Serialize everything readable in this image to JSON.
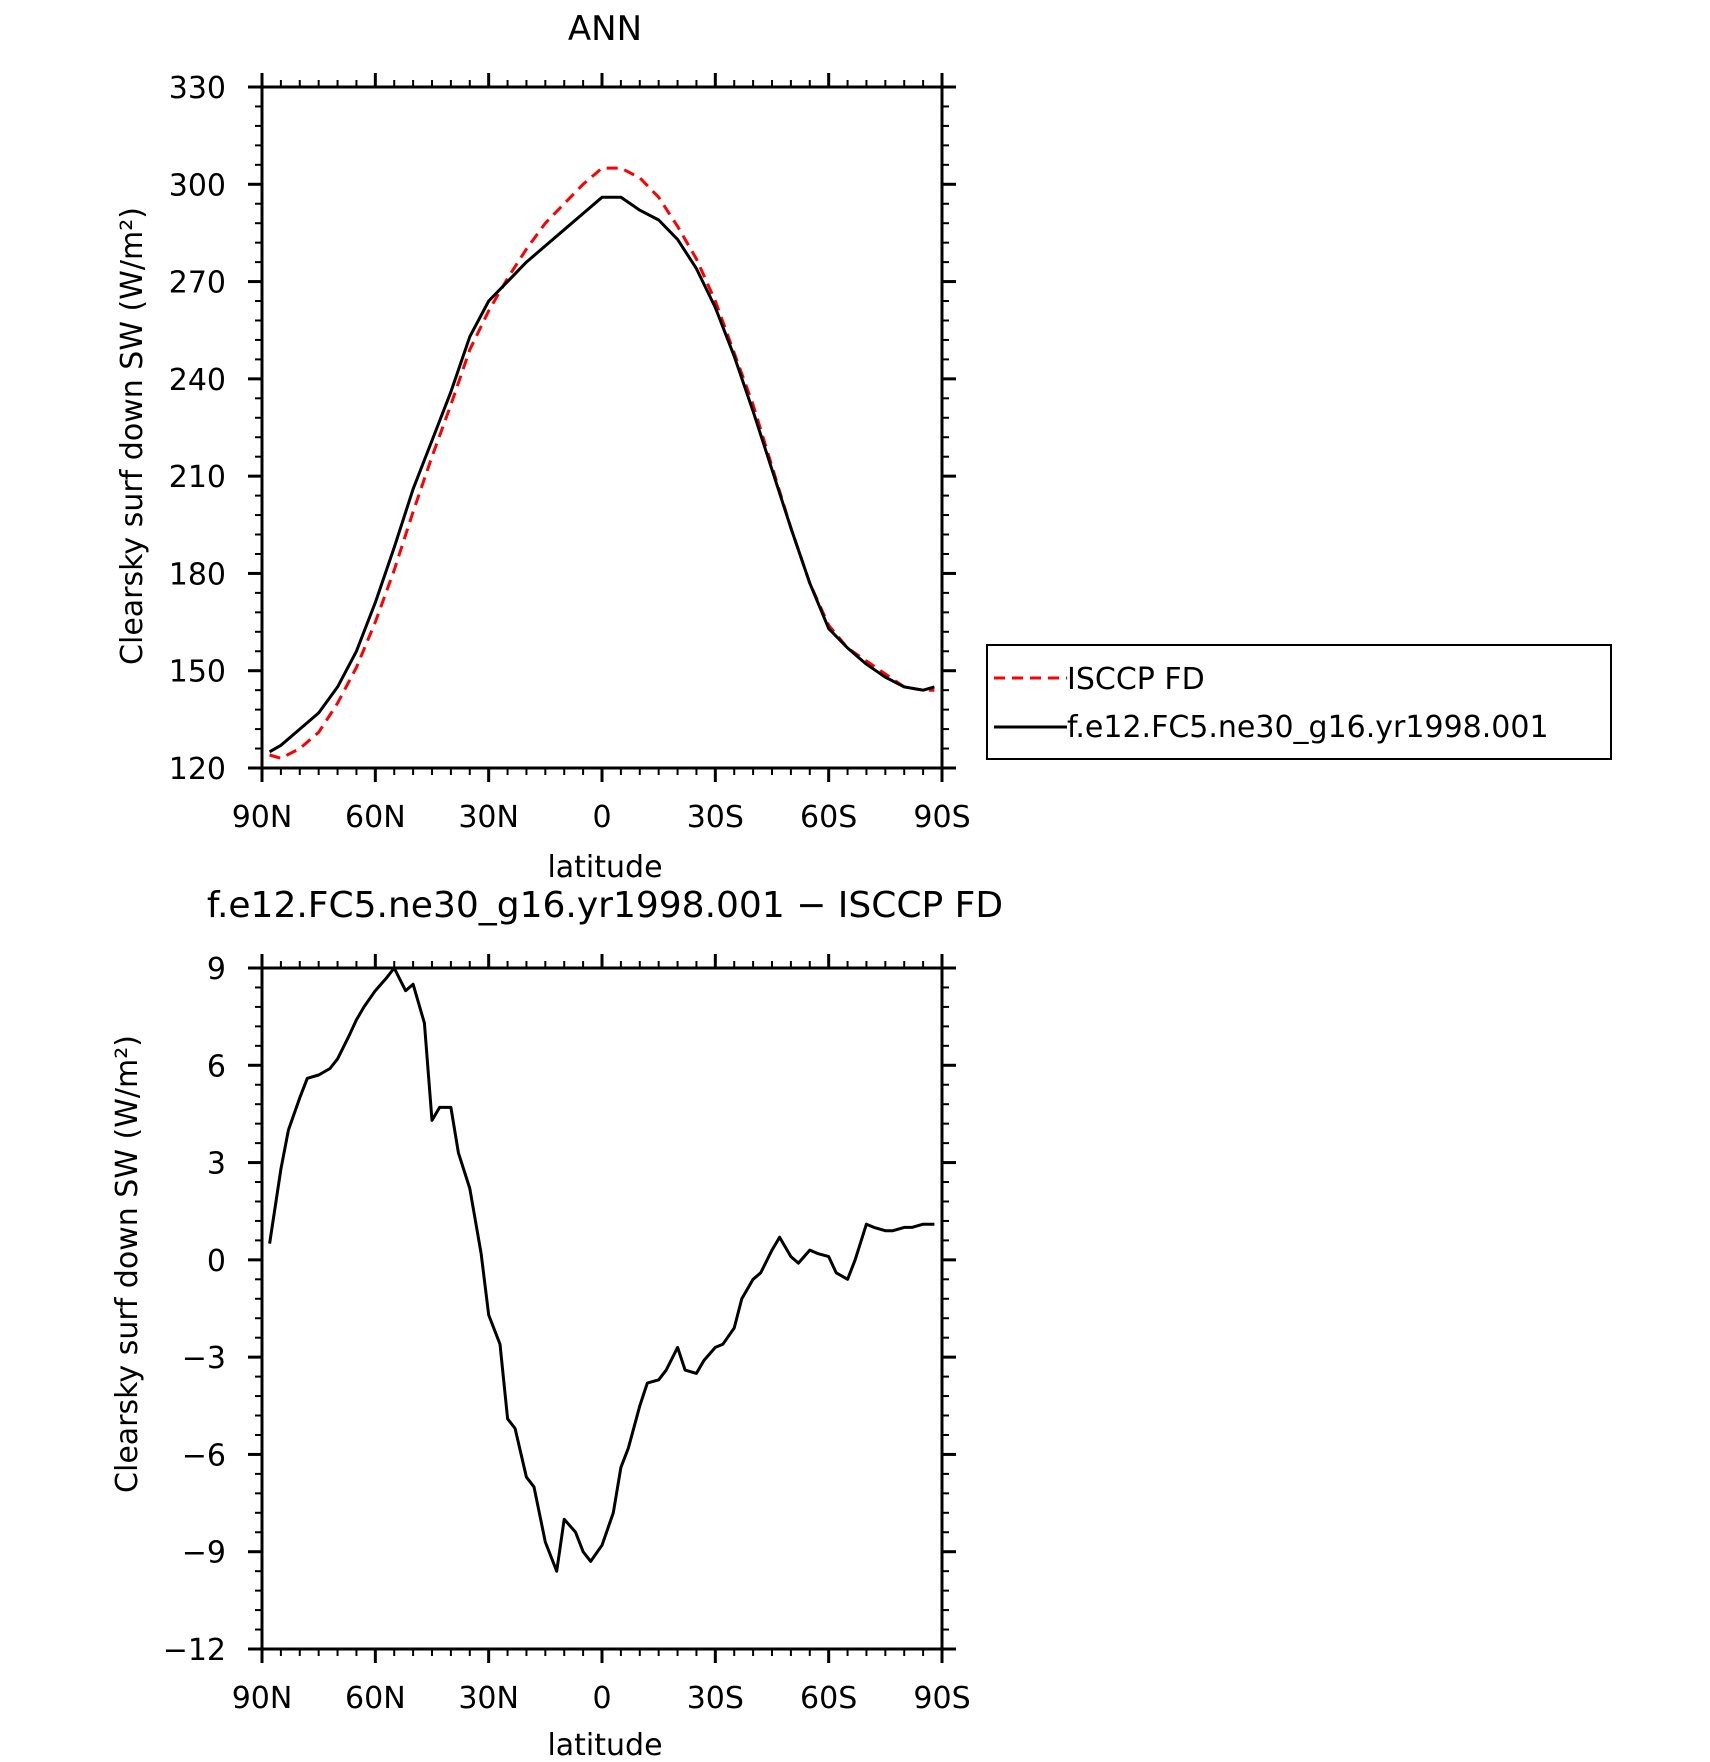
{
  "chart_data": [
    {
      "type": "line",
      "title": "ANN",
      "xlabel": "latitude",
      "ylabel": "Clearsky surf down SW (W/m²)",
      "x_ticks": [
        {
          "value": 90,
          "label": "90N"
        },
        {
          "value": 60,
          "label": "60N"
        },
        {
          "value": 30,
          "label": "30N"
        },
        {
          "value": 0,
          "label": "0"
        },
        {
          "value": -30,
          "label": "30S"
        },
        {
          "value": -60,
          "label": "60S"
        },
        {
          "value": -90,
          "label": "90S"
        }
      ],
      "y_ticks": [
        120,
        150,
        180,
        210,
        240,
        270,
        300,
        330
      ],
      "xlim": [
        90,
        -90
      ],
      "ylim": [
        120,
        330
      ],
      "legend_position": "right",
      "series": [
        {
          "name": "ISCCP FD",
          "color": "#ff0000",
          "dash": "dashed",
          "x": [
            88,
            85,
            80,
            75,
            70,
            65,
            60,
            55,
            50,
            45,
            40,
            35,
            30,
            25,
            20,
            15,
            10,
            5,
            0,
            -5,
            -10,
            -15,
            -20,
            -25,
            -30,
            -35,
            -40,
            -45,
            -50,
            -55,
            -60,
            -65,
            -70,
            -75,
            -80,
            -85,
            -88
          ],
          "y": [
            124,
            123,
            126,
            131,
            140,
            151,
            165,
            181,
            199,
            216,
            232,
            249,
            261,
            271,
            280,
            288,
            294,
            300,
            305,
            305,
            302,
            296,
            287,
            277,
            264,
            248,
            232,
            213,
            194,
            177,
            164,
            157,
            153,
            149,
            145,
            144,
            144
          ]
        },
        {
          "name": "f.e12.FC5.ne30_g16.yr1998.001",
          "color": "#000000",
          "dash": "solid",
          "x": [
            88,
            85,
            80,
            75,
            70,
            65,
            60,
            55,
            50,
            45,
            40,
            35,
            30,
            25,
            20,
            15,
            10,
            5,
            0,
            -5,
            -10,
            -15,
            -20,
            -25,
            -30,
            -35,
            -40,
            -45,
            -50,
            -55,
            -60,
            -65,
            -70,
            -75,
            -80,
            -85,
            -88
          ],
          "y": [
            125,
            127,
            132,
            137,
            145,
            156,
            171,
            188,
            206,
            221,
            236,
            253,
            264,
            270,
            276,
            281,
            286,
            291,
            296,
            296,
            292,
            289,
            283,
            274,
            262,
            247,
            230,
            212,
            194,
            177,
            163,
            157,
            152,
            148,
            145,
            144,
            145
          ]
        }
      ]
    },
    {
      "type": "line",
      "title": "f.e12.FC5.ne30_g16.yr1998.001 − ISCCP FD",
      "xlabel": "latitude",
      "ylabel": "Clearsky surf down SW (W/m²)",
      "x_ticks": [
        {
          "value": 90,
          "label": "90N"
        },
        {
          "value": 60,
          "label": "60N"
        },
        {
          "value": 30,
          "label": "30N"
        },
        {
          "value": 0,
          "label": "0"
        },
        {
          "value": -30,
          "label": "30S"
        },
        {
          "value": -60,
          "label": "60S"
        },
        {
          "value": -90,
          "label": "90S"
        }
      ],
      "y_ticks": [
        {
          "value": 9,
          "label": "9"
        },
        {
          "value": 6,
          "label": "6"
        },
        {
          "value": 3,
          "label": "3"
        },
        {
          "value": 0,
          "label": "0"
        },
        {
          "value": -3,
          "label": "−3"
        },
        {
          "value": -6,
          "label": "−6"
        },
        {
          "value": -9,
          "label": "−9"
        },
        {
          "value": -12,
          "label": "−12"
        }
      ],
      "xlim": [
        90,
        -90
      ],
      "ylim": [
        -12,
        9
      ],
      "series": [
        {
          "color": "#000000",
          "dash": "solid",
          "x": [
            88,
            85,
            83,
            80,
            78,
            75,
            72,
            70,
            67,
            65,
            63,
            60,
            57,
            55,
            52,
            50,
            47,
            45,
            43,
            40,
            38,
            35,
            32,
            30,
            27,
            25,
            23,
            20,
            18,
            15,
            12,
            10,
            7,
            5,
            3,
            0,
            -3,
            -5,
            -7,
            -10,
            -12,
            -15,
            -17,
            -20,
            -22,
            -25,
            -27,
            -30,
            -32,
            -35,
            -37,
            -40,
            -42,
            -45,
            -47,
            -50,
            -52,
            -55,
            -57,
            -60,
            -62,
            -65,
            -67,
            -70,
            -72,
            -75,
            -77,
            -80,
            -82,
            -85,
            -87,
            -88
          ],
          "y": [
            0.5,
            2.8,
            4.0,
            5.0,
            5.6,
            5.7,
            5.9,
            6.2,
            6.9,
            7.4,
            7.8,
            8.3,
            8.7,
            9.0,
            8.3,
            8.5,
            7.3,
            4.3,
            4.7,
            4.7,
            3.3,
            2.2,
            0.2,
            -1.7,
            -2.6,
            -4.9,
            -5.2,
            -6.7,
            -7.0,
            -8.7,
            -9.6,
            -8.0,
            -8.4,
            -9.0,
            -9.3,
            -8.8,
            -7.8,
            -6.4,
            -5.8,
            -4.5,
            -3.8,
            -3.7,
            -3.4,
            -2.7,
            -3.4,
            -3.5,
            -3.1,
            -2.7,
            -2.6,
            -2.1,
            -1.2,
            -0.6,
            -0.4,
            0.3,
            0.7,
            0.1,
            -0.1,
            0.3,
            0.2,
            0.1,
            -0.4,
            -0.6,
            0.0,
            1.1,
            1.0,
            0.9,
            0.9,
            1.0,
            1.0,
            1.1,
            1.1,
            1.1
          ]
        }
      ]
    }
  ]
}
